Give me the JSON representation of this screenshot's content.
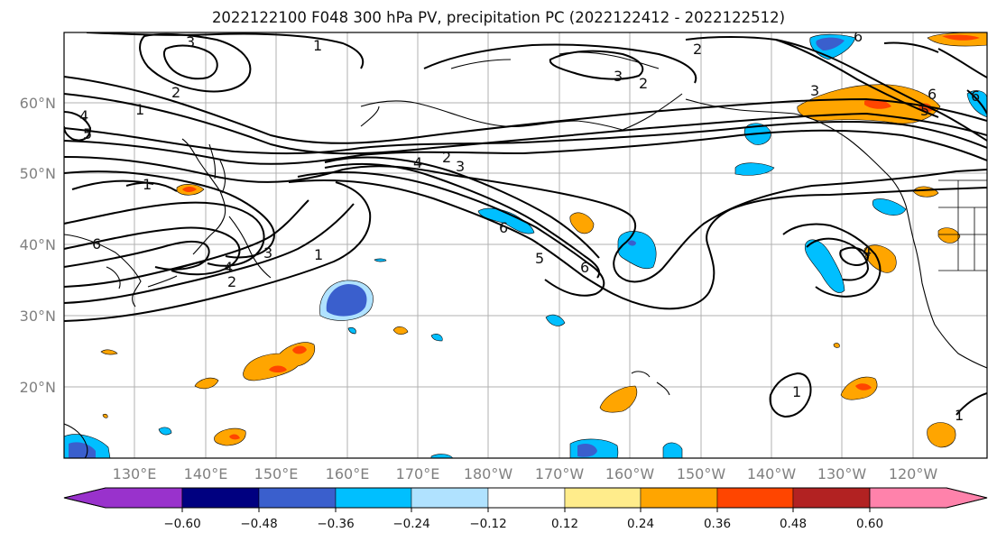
{
  "title": "2022122100 F048 300 hPa PV, precipitation PC (2022122412 - 2022122512)",
  "map": {
    "lat_labels": [
      "60°N",
      "50°N",
      "40°N",
      "30°N",
      "20°N"
    ],
    "lon_labels": [
      "130°E",
      "140°E",
      "150°E",
      "160°E",
      "170°E",
      "180°W",
      "170°W",
      "160°W",
      "150°W",
      "140°W",
      "130°W",
      "120°W"
    ],
    "contour_labels": [
      "1",
      "2",
      "3",
      "4",
      "5",
      "6"
    ],
    "pv_contour_color": "#000000",
    "coastline_color": "#000000",
    "gridline_color": "#b0b0b0"
  },
  "colorbar": {
    "colors": [
      "#9932cc",
      "#000080",
      "#3a5fcd",
      "#00bfff",
      "#b0e2ff",
      "#ffffff",
      "#ffec8b",
      "#ffa500",
      "#ff4500",
      "#b22222",
      "#ff82ab"
    ],
    "tick_labels": [
      "−0.60",
      "−0.48",
      "−0.36",
      "−0.24",
      "−0.12",
      "0.12",
      "0.24",
      "0.36",
      "0.48",
      "0.60"
    ]
  }
}
